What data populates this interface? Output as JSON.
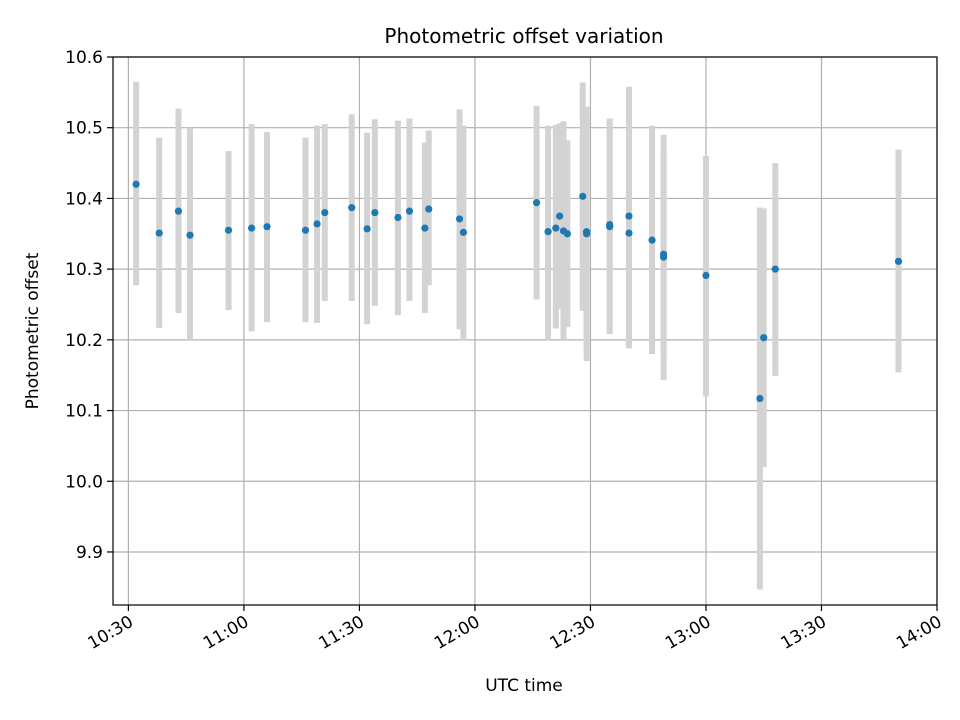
{
  "chart_data": {
    "type": "scatter",
    "title": "Photometric offset variation",
    "xlabel": "UTC time",
    "ylabel": "Photometric offset",
    "x_axis_kind": "time",
    "xlim": [
      "10:26",
      "14:00"
    ],
    "ylim": [
      9.825,
      10.6
    ],
    "x_ticks": [
      "10:30",
      "11:00",
      "11:30",
      "12:00",
      "12:30",
      "13:00",
      "13:30",
      "14:00"
    ],
    "y_ticks": [
      "9.9",
      "10.0",
      "10.1",
      "10.2",
      "10.3",
      "10.4",
      "10.5",
      "10.6"
    ],
    "grid": true,
    "point_color": "#1f77b4",
    "errorbar_color": "#d3d3d3",
    "points": [
      {
        "x": "10:32",
        "y": 10.42,
        "ylow": 10.277,
        "yhigh": 10.565
      },
      {
        "x": "10:38",
        "y": 10.351,
        "ylow": 10.217,
        "yhigh": 10.486
      },
      {
        "x": "10:43",
        "y": 10.382,
        "ylow": 10.238,
        "yhigh": 10.527
      },
      {
        "x": "10:46",
        "y": 10.348,
        "ylow": 10.2,
        "yhigh": 10.5
      },
      {
        "x": "10:56",
        "y": 10.355,
        "ylow": 10.242,
        "yhigh": 10.467
      },
      {
        "x": "11:02",
        "y": 10.358,
        "ylow": 10.212,
        "yhigh": 10.505
      },
      {
        "x": "11:06",
        "y": 10.36,
        "ylow": 10.225,
        "yhigh": 10.494
      },
      {
        "x": "11:16",
        "y": 10.355,
        "ylow": 10.225,
        "yhigh": 10.486
      },
      {
        "x": "11:19",
        "y": 10.364,
        "ylow": 10.224,
        "yhigh": 10.503
      },
      {
        "x": "11:21",
        "y": 10.38,
        "ylow": 10.255,
        "yhigh": 10.505
      },
      {
        "x": "11:28",
        "y": 10.387,
        "ylow": 10.255,
        "yhigh": 10.519
      },
      {
        "x": "11:32",
        "y": 10.357,
        "ylow": 10.222,
        "yhigh": 10.493
      },
      {
        "x": "11:34",
        "y": 10.38,
        "ylow": 10.248,
        "yhigh": 10.512
      },
      {
        "x": "11:40",
        "y": 10.373,
        "ylow": 10.235,
        "yhigh": 10.51
      },
      {
        "x": "11:43",
        "y": 10.382,
        "ylow": 10.255,
        "yhigh": 10.513
      },
      {
        "x": "11:47",
        "y": 10.358,
        "ylow": 10.238,
        "yhigh": 10.479
      },
      {
        "x": "11:48",
        "y": 10.385,
        "ylow": 10.277,
        "yhigh": 10.496
      },
      {
        "x": "11:56",
        "y": 10.371,
        "ylow": 10.215,
        "yhigh": 10.526
      },
      {
        "x": "11:57",
        "y": 10.352,
        "ylow": 10.2,
        "yhigh": 10.503
      },
      {
        "x": "12:16",
        "y": 10.394,
        "ylow": 10.257,
        "yhigh": 10.531
      },
      {
        "x": "12:19",
        "y": 10.353,
        "ylow": 10.2,
        "yhigh": 10.503
      },
      {
        "x": "12:21",
        "y": 10.358,
        "ylow": 10.216,
        "yhigh": 10.504
      },
      {
        "x": "12:22",
        "y": 10.375,
        "ylow": 10.244,
        "yhigh": 10.506
      },
      {
        "x": "12:23",
        "y": 10.354,
        "ylow": 10.2,
        "yhigh": 10.509
      },
      {
        "x": "12:24",
        "y": 10.35,
        "ylow": 10.218,
        "yhigh": 10.482
      },
      {
        "x": "12:28",
        "y": 10.403,
        "ylow": 10.241,
        "yhigh": 10.564
      },
      {
        "x": "12:29",
        "y": 10.35,
        "ylow": 10.17,
        "yhigh": 10.53
      },
      {
        "x": "12:29",
        "y": 10.353,
        "ylow": 10.19,
        "yhigh": 10.515
      },
      {
        "x": "12:35",
        "y": 10.36,
        "ylow": 10.208,
        "yhigh": 10.513
      },
      {
        "x": "12:35",
        "y": 10.363,
        "ylow": 10.215,
        "yhigh": 10.51
      },
      {
        "x": "12:40",
        "y": 10.351,
        "ylow": 10.188,
        "yhigh": 10.517
      },
      {
        "x": "12:40",
        "y": 10.375,
        "ylow": 10.192,
        "yhigh": 10.558
      },
      {
        "x": "12:46",
        "y": 10.341,
        "ylow": 10.18,
        "yhigh": 10.503
      },
      {
        "x": "12:49",
        "y": 10.317,
        "ylow": 10.143,
        "yhigh": 10.49
      },
      {
        "x": "12:49",
        "y": 10.321,
        "ylow": 10.176,
        "yhigh": 10.465
      },
      {
        "x": "13:00",
        "y": 10.291,
        "ylow": 10.12,
        "yhigh": 10.46
      },
      {
        "x": "13:14",
        "y": 10.117,
        "ylow": 9.847,
        "yhigh": 10.387
      },
      {
        "x": "13:15",
        "y": 10.203,
        "ylow": 10.02,
        "yhigh": 10.386
      },
      {
        "x": "13:18",
        "y": 10.3,
        "ylow": 10.149,
        "yhigh": 10.45
      },
      {
        "x": "13:50",
        "y": 10.311,
        "ylow": 10.154,
        "yhigh": 10.469
      }
    ]
  }
}
